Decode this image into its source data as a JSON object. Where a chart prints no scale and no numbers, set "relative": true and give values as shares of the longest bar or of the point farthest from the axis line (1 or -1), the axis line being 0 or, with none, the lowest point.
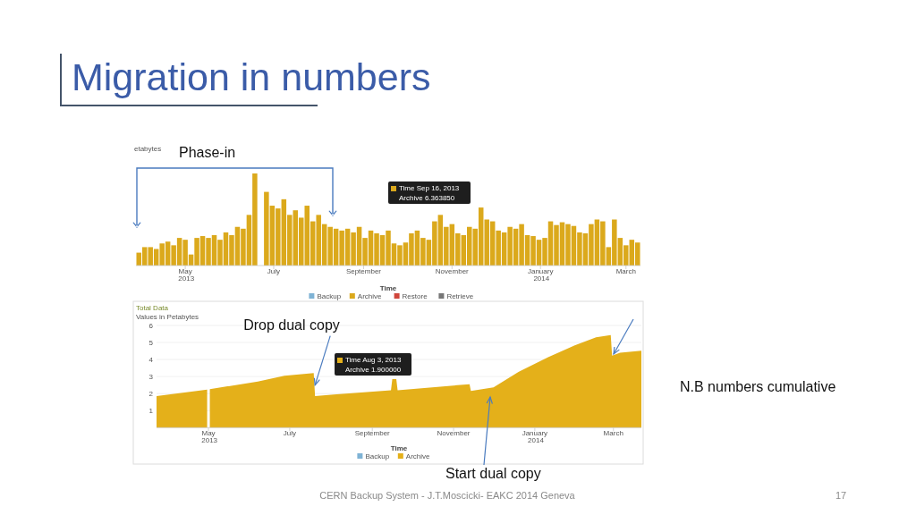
{
  "chart_data": [
    {
      "type": "bar",
      "title": "Migration in numbers",
      "subtitle": "etabytes",
      "xlabel": "Time",
      "relative": true,
      "legend": "bottom",
      "x": [
        "2013-03-30",
        "2013-04-03",
        "2013-04-07",
        "2013-04-11",
        "2013-04-15",
        "2013-04-19",
        "2013-04-23",
        "2013-04-27",
        "2013-05-01",
        "2013-05-05",
        "2013-05-09",
        "2013-05-13",
        "2013-05-17",
        "2013-05-21",
        "2013-05-25",
        "2013-05-29",
        "2013-06-02",
        "2013-06-06",
        "2013-06-10",
        "2013-06-14",
        "2013-06-18",
        "2013-06-22",
        "2013-06-26",
        "2013-06-30",
        "2013-07-04",
        "2013-07-08",
        "2013-07-12",
        "2013-07-16",
        "2013-07-20",
        "2013-07-24",
        "2013-07-28",
        "2013-08-01",
        "2013-08-05",
        "2013-08-09",
        "2013-08-13",
        "2013-08-17",
        "2013-08-21",
        "2013-08-25",
        "2013-08-29",
        "2013-09-02",
        "2013-09-06",
        "2013-09-10",
        "2013-09-14",
        "2013-09-18",
        "2013-09-22",
        "2013-09-26",
        "2013-09-30",
        "2013-10-04",
        "2013-10-08",
        "2013-10-12",
        "2013-10-16",
        "2013-10-20",
        "2013-10-24",
        "2013-10-28",
        "2013-11-01",
        "2013-11-05",
        "2013-11-09",
        "2013-11-13",
        "2013-11-17",
        "2013-11-21",
        "2013-11-25",
        "2013-11-29",
        "2013-12-03",
        "2013-12-07",
        "2013-12-11",
        "2013-12-15",
        "2013-12-19",
        "2013-12-23",
        "2013-12-27",
        "2013-12-31",
        "2014-01-04",
        "2014-01-08",
        "2014-01-12",
        "2014-01-16",
        "2014-01-20",
        "2014-01-24",
        "2014-01-28",
        "2014-02-01",
        "2014-02-05",
        "2014-02-09",
        "2014-02-13",
        "2014-02-17",
        "2014-02-21",
        "2014-02-25",
        "2014-03-01",
        "2014-03-05",
        "2014-03-09"
      ],
      "xlim": [
        "2013-03-28",
        "2014-03-11"
      ],
      "xticks": [
        {
          "value": "2013-05-01",
          "label": "May 2013"
        },
        {
          "value": "2013-07-01",
          "label": "July"
        },
        {
          "value": "2013-09-01",
          "label": "September"
        },
        {
          "value": "2013-11-01",
          "label": "November"
        },
        {
          "value": "2014-01-01",
          "label": "January 2014"
        },
        {
          "value": "2014-03-01",
          "label": "March"
        }
      ],
      "series": [
        {
          "name": "Backup",
          "color": "#7fb3d5",
          "values": [
            null,
            null,
            null,
            null,
            null,
            null,
            null,
            null,
            null,
            null,
            null,
            null,
            null,
            null,
            null,
            null,
            null,
            null,
            null,
            null,
            null,
            null,
            null,
            null,
            null,
            null,
            null,
            null,
            null,
            null,
            null,
            null,
            null,
            null,
            null,
            null,
            null,
            null,
            null,
            null,
            null,
            null,
            null,
            null,
            null,
            null,
            null,
            null,
            null,
            null,
            null,
            null,
            null,
            null,
            null,
            null,
            null,
            null,
            null,
            null,
            null,
            null,
            null,
            null,
            null,
            null,
            null,
            null,
            null,
            null,
            null,
            null,
            null,
            null,
            null,
            null,
            null,
            null,
            null,
            null,
            null,
            null,
            null,
            null,
            null,
            null,
            null
          ]
        },
        {
          "name": "Archive",
          "color": "#dba91c",
          "values": [
            0.14,
            0.2,
            0.2,
            0.18,
            0.24,
            0.26,
            0.22,
            0.3,
            0.28,
            0.12,
            0.3,
            0.32,
            0.3,
            0.33,
            0.28,
            0.36,
            0.33,
            0.42,
            0.4,
            0.55,
            1,
            null,
            0.8,
            0.65,
            0.62,
            0.72,
            0.55,
            0.6,
            0.52,
            0.65,
            0.48,
            0.55,
            0.45,
            0.42,
            0.4,
            0.38,
            0.4,
            0.36,
            0.42,
            0.3,
            0.38,
            0.35,
            0.33,
            0.38,
            0.24,
            0.22,
            0.25,
            0.35,
            0.38,
            0.3,
            0.28,
            0.48,
            0.55,
            0.42,
            0.45,
            0.35,
            0.33,
            0.42,
            0.4,
            0.63,
            0.5,
            0.48,
            0.38,
            0.36,
            0.42,
            0.4,
            0.45,
            0.33,
            0.32,
            0.28,
            0.3,
            0.48,
            0.44,
            0.47,
            0.45,
            0.43,
            0.36,
            0.35,
            0.45,
            0.5,
            0.48,
            0.2,
            0.5,
            0.3,
            0.22,
            0.28,
            0.25
          ]
        },
        {
          "name": "Restore",
          "color": "#d0463c",
          "values": [
            null,
            null,
            null,
            null,
            null,
            null,
            null,
            null,
            null,
            null,
            null,
            null,
            null,
            null,
            null,
            null,
            null,
            null,
            null,
            null,
            null,
            null,
            null,
            null,
            null,
            null,
            null,
            null,
            null,
            null,
            null,
            null,
            null,
            null,
            null,
            null,
            null,
            null,
            null,
            null,
            null,
            null,
            null,
            null,
            null,
            null,
            null,
            null,
            null,
            null,
            null,
            null,
            null,
            null,
            null,
            null,
            null,
            null,
            null,
            null,
            null,
            null,
            null,
            null,
            null,
            null,
            null,
            null,
            null,
            null,
            null,
            null,
            null,
            null,
            null,
            null,
            null,
            null,
            null,
            null,
            null,
            null,
            null,
            null,
            null,
            null,
            null
          ]
        },
        {
          "name": "Retrieve",
          "color": "#777777",
          "values": [
            null,
            null,
            null,
            null,
            null,
            null,
            null,
            null,
            null,
            null,
            null,
            null,
            null,
            null,
            null,
            null,
            null,
            null,
            null,
            null,
            null,
            null,
            null,
            null,
            null,
            null,
            null,
            null,
            null,
            null,
            null,
            null,
            null,
            null,
            null,
            null,
            null,
            null,
            null,
            null,
            null,
            null,
            null,
            null,
            null,
            null,
            null,
            null,
            null,
            null,
            null,
            null,
            null,
            null,
            null,
            null,
            null,
            null,
            null,
            null,
            null,
            null,
            null,
            null,
            null,
            null,
            null,
            null,
            null,
            null,
            null,
            null,
            null,
            null,
            null,
            null,
            null,
            null,
            null,
            null,
            null,
            null,
            null,
            null,
            null,
            null,
            null
          ]
        }
      ],
      "annotations": [
        "Phase-in",
        "Time Sep 16, 2013",
        "Archive 6.363850"
      ]
    },
    {
      "type": "area",
      "title": "Total Data",
      "subtitle": "Values in Petabytes",
      "xlabel": "Time",
      "legend": "bottom",
      "grid": "y",
      "x": [
        "2013-03-23",
        "2013-04-30",
        "2013-05-01",
        "2013-05-02",
        "2013-06-07",
        "2013-06-27",
        "2013-07-19",
        "2013-07-20",
        "2013-08-03",
        "2013-09-15",
        "2013-09-16",
        "2013-09-19",
        "2013-09-20",
        "2013-11-13",
        "2013-11-14",
        "2013-12-01",
        "2013-12-20",
        "2014-01-11",
        "2014-01-31",
        "2014-02-16",
        "2014-02-27",
        "2014-02-28",
        "2014-03-06",
        "2014-03-22"
      ],
      "xlim": [
        "2013-03-23",
        "2014-03-22"
      ],
      "xticks": [
        {
          "value": "2013-05-01",
          "label": "May 2013"
        },
        {
          "value": "2013-07-01",
          "label": "July"
        },
        {
          "value": "2013-09-01",
          "label": "September"
        },
        {
          "value": "2013-11-01",
          "label": "November"
        },
        {
          "value": "2014-01-01",
          "label": "January 2014"
        },
        {
          "value": "2014-03-01",
          "label": "March"
        }
      ],
      "ylim": [
        0,
        6
      ],
      "yticks": [
        1,
        2,
        3,
        4,
        5,
        6
      ],
      "series": [
        {
          "name": "Backup",
          "color": "#7fb3d5",
          "values": [
            null,
            null,
            null,
            null,
            null,
            null,
            null,
            null,
            null,
            null,
            null,
            null,
            null,
            null,
            null,
            null,
            null,
            null,
            null,
            null,
            null,
            null,
            null,
            null
          ]
        },
        {
          "name": "Archive",
          "color": "#e4b01a",
          "values": [
            1.85,
            2.24,
            null,
            2.26,
            2.71,
            3.05,
            3.2,
            1.85,
            1.95,
            2.2,
            2.85,
            2.85,
            2.2,
            2.55,
            2.16,
            2.36,
            3.28,
            4.14,
            4.83,
            5.3,
            5.44,
            4.23,
            4.4,
            4.52
          ]
        }
      ],
      "annotations": [
        {
          "text": "Drop dual copy",
          "x": "2013-07-20",
          "y": 2.5
        },
        "Start dual copy",
        "Time Aug 3, 2013",
        "Archive 1.900000",
        "N.B numbers cumulative",
        "CERN Backup System - J.T.Moscicki- EAKC 2014 Geneva",
        "17"
      ]
    }
  ]
}
